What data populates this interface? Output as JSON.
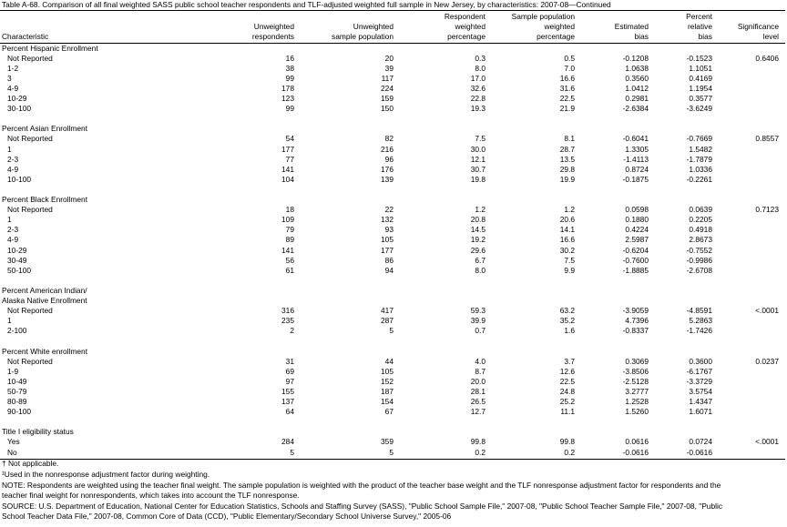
{
  "title": "Table A-68. Comparison of all final weighted SASS public school teacher respondents and TLF-adjusted weighted full sample in New Jersey, by characteristics: 2007-08—Continued",
  "table": {
    "columns": [
      "Characteristic",
      "Unweighted\nrespondents",
      "Unweighted\nsample population",
      "Respondent\nweighted\npercentage",
      "Sample population\nweighted\npercentage",
      "Estimated\nbias",
      "Percent\nrelative\nbias",
      "Significance\nlevel"
    ],
    "sections": [
      {
        "label": "Percent Hispanic Enrollment",
        "rows": [
          [
            "Not Reported",
            "16",
            "20",
            "0.3",
            "0.5",
            "-0.1208",
            "-0.1523",
            "0.6406"
          ],
          [
            "1-2",
            "38",
            "39",
            "8.0",
            "7.0",
            "1.0638",
            "1.1051"
          ],
          [
            "3",
            "99",
            "117",
            "17.0",
            "16.6",
            "0.3560",
            "0.4169"
          ],
          [
            "4-9",
            "178",
            "224",
            "32.6",
            "31.6",
            "1.0412",
            "1.1954"
          ],
          [
            "10-29",
            "123",
            "159",
            "22.8",
            "22.5",
            "0.2981",
            "0.3577"
          ],
          [
            "30-100",
            "99",
            "150",
            "19.3",
            "21.9",
            "-2.6384",
            "-3.6249"
          ]
        ]
      },
      {
        "label": "Percent Asian Enrollment",
        "rows": [
          [
            "Not Reported",
            "54",
            "82",
            "7.5",
            "8.1",
            "-0.6041",
            "-0.7669",
            "0.8557"
          ],
          [
            "1",
            "177",
            "216",
            "30.0",
            "28.7",
            "1.3305",
            "1.5482"
          ],
          [
            "2-3",
            "77",
            "96",
            "12.1",
            "13.5",
            "-1.4113",
            "-1.7879"
          ],
          [
            "4-9",
            "141",
            "176",
            "30.7",
            "29.8",
            "0.8724",
            "1.0336"
          ],
          [
            "10-100",
            "104",
            "139",
            "19.8",
            "19.9",
            "-0.1875",
            "-0.2261"
          ]
        ]
      },
      {
        "label": "Percent Black Enrollment",
        "rows": [
          [
            "Not Reported",
            "18",
            "22",
            "1.2",
            "1.2",
            "0.0598",
            "0.0639",
            "0.7123"
          ],
          [
            "1",
            "109",
            "132",
            "20.8",
            "20.6",
            "0.1880",
            "0.2205"
          ],
          [
            "2-3",
            "79",
            "93",
            "14.5",
            "14.1",
            "0.4224",
            "0.4918"
          ],
          [
            "4-9",
            "89",
            "105",
            "19.2",
            "16.6",
            "2.5987",
            "2.8673"
          ],
          [
            "10-29",
            "141",
            "177",
            "29.6",
            "30.2",
            "-0.6204",
            "-0.7552"
          ],
          [
            "30-49",
            "56",
            "86",
            "6.7",
            "7.5",
            "-0.7600",
            "-0.9986"
          ],
          [
            "50-100",
            "61",
            "94",
            "8.0",
            "9.9",
            "-1.8885",
            "-2.6708"
          ]
        ]
      },
      {
        "label": "Percent American Indian/\nAlaska Native Enrollment",
        "rows": [
          [
            "Not Reported",
            "316",
            "417",
            "59.3",
            "63.2",
            "-3.9059",
            "-4.8591",
            "<.0001"
          ],
          [
            "1",
            "235",
            "287",
            "39.9",
            "35.2",
            "4.7396",
            "5.2863"
          ],
          [
            "2-100",
            "2",
            "5",
            "0.7",
            "1.6",
            "-0.8337",
            "-1.7426"
          ]
        ]
      },
      {
        "label": "Percent White enrollment",
        "rows": [
          [
            "Not Reported",
            "31",
            "44",
            "4.0",
            "3.7",
            "0.3069",
            "0.3600",
            "0.0237"
          ],
          [
            "1-9",
            "69",
            "105",
            "8.7",
            "12.6",
            "-3.8506",
            "-6.1767"
          ],
          [
            "10-49",
            "97",
            "152",
            "20.0",
            "22.5",
            "-2.5128",
            "-3.3729"
          ],
          [
            "50-79",
            "155",
            "187",
            "28.1",
            "24.8",
            "3.2777",
            "3.5754"
          ],
          [
            "80-89",
            "137",
            "154",
            "26.5",
            "25.2",
            "1.2528",
            "1.4347"
          ],
          [
            "90-100",
            "64",
            "67",
            "12.7",
            "11.1",
            "1.5260",
            "1.6071"
          ]
        ]
      },
      {
        "label": "Title I eligibility status",
        "rows": [
          [
            "Yes",
            "284",
            "359",
            "99.8",
            "99.8",
            "0.0616",
            "0.0724",
            "<.0001"
          ],
          [
            "No",
            "5",
            "5",
            "0.2",
            "0.2",
            "-0.0616",
            "-0.0616"
          ]
        ]
      }
    ]
  },
  "notes": [
    "† Not applicable.",
    "¹Used in the nonresponse adjustment factor during weighting.",
    "NOTE: Respondents are weighted using the teacher final weight. The sample population is weighted with the product of the teacher base weight and the TLF nonresponse adjustment factor for respondents and the teacher final weight for nonrespondents, which takes into account the TLF nonresponse.",
    "SOURCE: U.S. Department of Education, National Center for Education Statistics, Schools and Staffing Survey (SASS), \"Public School Sample File,\" 2007-08, \"Public School Teacher Sample File,\" 2007-08, \"Public School Teacher Data File,\" 2007-08, Common Core of Data (CCD), \"Public Elementary/Secondary School Universe Survey,\" 2005-06"
  ]
}
